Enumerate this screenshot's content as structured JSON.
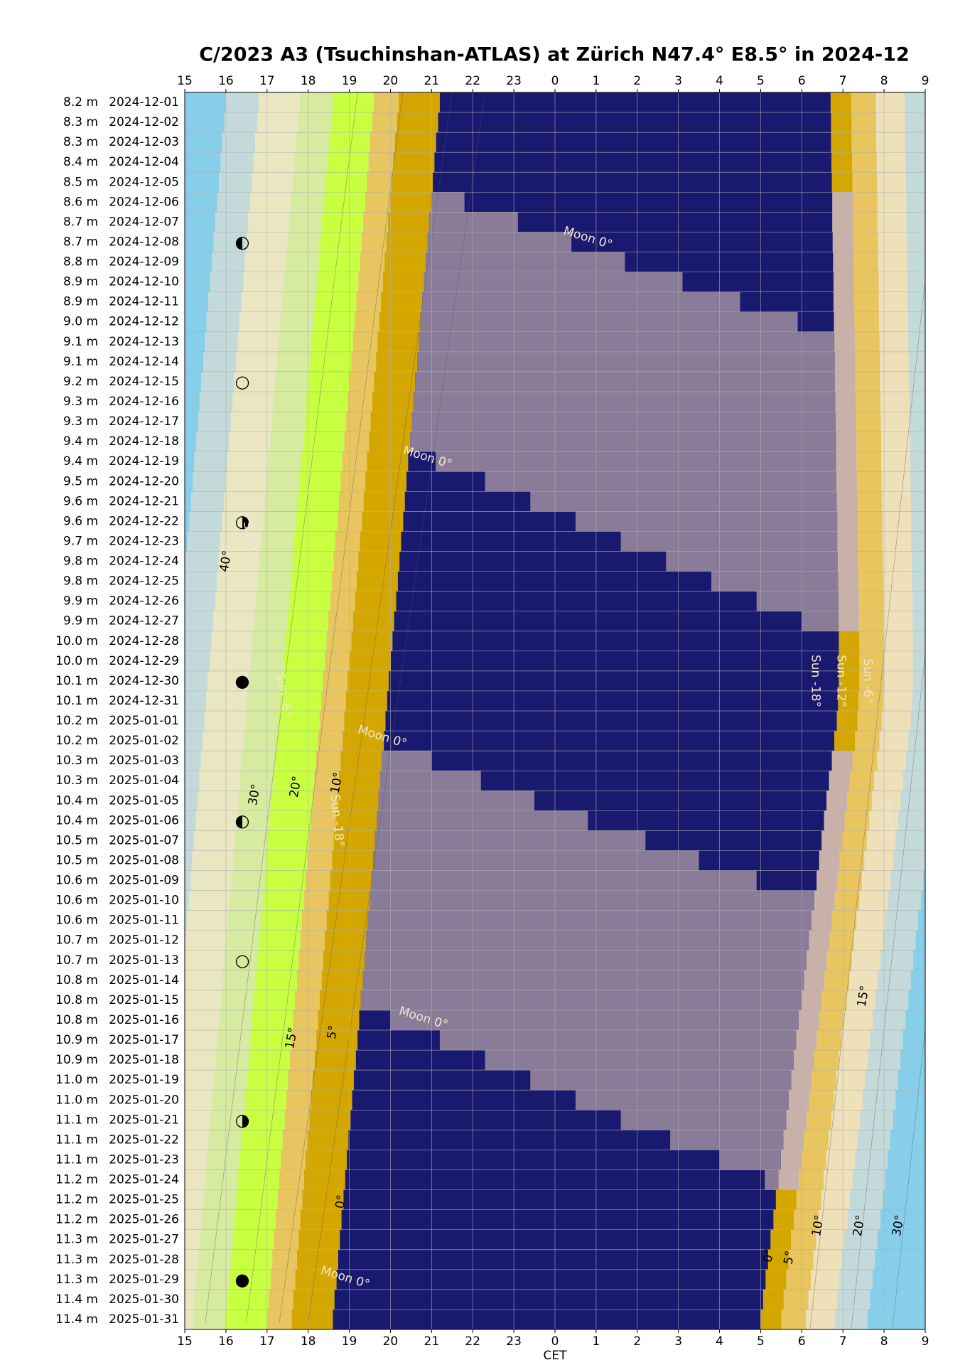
{
  "chart_data": {
    "type": "night-plan",
    "title": "C/2023 A3 (Tsuchinshan-ATLAS) at Zürich N47.4° E8.5° in 2024-12",
    "x_label": "CET",
    "xlim": [
      15,
      33
    ],
    "xticks": [
      15,
      16,
      17,
      18,
      19,
      20,
      21,
      22,
      23,
      {
        "value": 24,
        "label": "0"
      },
      {
        "value": 25,
        "label": "1"
      },
      {
        "value": 26,
        "label": "2"
      },
      {
        "value": 27,
        "label": "3"
      },
      {
        "value": 28,
        "label": "4"
      },
      {
        "value": 29,
        "label": "5"
      },
      {
        "value": 30,
        "label": "6"
      },
      {
        "value": 31,
        "label": "7"
      },
      {
        "value": 32,
        "label": "8"
      },
      {
        "value": 33,
        "label": "9"
      }
    ],
    "grid": true,
    "colors": {
      "dark": "#191970",
      "moon": "#8a7b98"
    },
    "annotations": [
      "Moon 0°",
      "Sun -18°",
      "Sun -12°",
      "Sun -6°",
      "Sun 0°",
      "40°",
      "30°",
      "20°",
      "10°",
      "15°",
      "5°",
      "0°"
    ],
    "rows": [
      {
        "mag": "8.2 m",
        "date": "2024-12-01",
        "dark": [
          21.2,
          30.7
        ],
        "moon": null
      },
      {
        "mag": "8.3 m",
        "date": "2024-12-02",
        "dark": [
          21.16,
          30.71
        ],
        "moon": null
      },
      {
        "mag": "8.3 m",
        "date": "2024-12-03",
        "dark": [
          21.11,
          30.71
        ],
        "moon": null
      },
      {
        "mag": "8.4 m",
        "date": "2024-12-04",
        "dark": [
          21.07,
          30.72
        ],
        "moon": null
      },
      {
        "mag": "8.5 m",
        "date": "2024-12-05",
        "dark": [
          21.03,
          30.73
        ],
        "moon": null
      },
      {
        "mag": "8.6 m",
        "date": "2024-12-06",
        "dark": [
          20.99,
          30.74
        ],
        "moon": [
          20.99,
          21.8
        ]
      },
      {
        "mag": "8.7 m",
        "date": "2024-12-07",
        "dark": [
          20.94,
          30.74
        ],
        "moon": [
          20.94,
          23.1
        ]
      },
      {
        "mag": "8.7 m",
        "date": "2024-12-08",
        "dark": [
          20.9,
          30.75
        ],
        "moon": [
          20.9,
          24.4
        ],
        "phase": "◐"
      },
      {
        "mag": "8.8 m",
        "date": "2024-12-09",
        "dark": [
          20.86,
          30.76
        ],
        "moon": [
          20.86,
          25.7
        ]
      },
      {
        "mag": "8.9 m",
        "date": "2024-12-10",
        "dark": [
          20.82,
          30.77
        ],
        "moon": [
          20.82,
          27.1
        ]
      },
      {
        "mag": "8.9 m",
        "date": "2024-12-11",
        "dark": [
          20.77,
          30.77
        ],
        "moon": [
          20.77,
          28.5
        ]
      },
      {
        "mag": "9.0 m",
        "date": "2024-12-12",
        "dark": [
          20.73,
          30.78
        ],
        "moon": [
          20.73,
          29.9
        ]
      },
      {
        "mag": "9.1 m",
        "date": "2024-12-13",
        "dark": [
          20.69,
          30.79
        ],
        "moon": [
          20.69,
          30.79
        ]
      },
      {
        "mag": "9.1 m",
        "date": "2024-12-14",
        "dark": [
          20.65,
          30.8
        ],
        "moon": [
          20.65,
          30.8
        ]
      },
      {
        "mag": "9.2 m",
        "date": "2024-12-15",
        "dark": [
          20.6,
          30.8
        ],
        "moon": [
          20.6,
          30.8
        ],
        "phase": "○"
      },
      {
        "mag": "9.3 m",
        "date": "2024-12-16",
        "dark": [
          20.56,
          30.81
        ],
        "moon": [
          20.56,
          30.81
        ]
      },
      {
        "mag": "9.3 m",
        "date": "2024-12-17",
        "dark": [
          20.52,
          30.82
        ],
        "moon": [
          20.52,
          30.82
        ]
      },
      {
        "mag": "9.4 m",
        "date": "2024-12-18",
        "dark": [
          20.48,
          30.83
        ],
        "moon": [
          20.48,
          30.83
        ]
      },
      {
        "mag": "9.4 m",
        "date": "2024-12-19",
        "dark": [
          20.43,
          30.83
        ],
        "moon": [
          21.1,
          30.83
        ]
      },
      {
        "mag": "9.5 m",
        "date": "2024-12-20",
        "dark": [
          20.39,
          30.84
        ],
        "moon": [
          22.3,
          30.84
        ]
      },
      {
        "mag": "9.6 m",
        "date": "2024-12-21",
        "dark": [
          20.35,
          30.85
        ],
        "moon": [
          23.4,
          30.85
        ]
      },
      {
        "mag": "9.6 m",
        "date": "2024-12-22",
        "dark": [
          20.31,
          30.86
        ],
        "moon": [
          24.5,
          30.86
        ],
        "phase": "◑"
      },
      {
        "mag": "9.7 m",
        "date": "2024-12-23",
        "dark": [
          20.26,
          30.86
        ],
        "moon": [
          25.6,
          30.86
        ]
      },
      {
        "mag": "9.8 m",
        "date": "2024-12-24",
        "dark": [
          20.22,
          30.87
        ],
        "moon": [
          26.7,
          30.87
        ]
      },
      {
        "mag": "9.8 m",
        "date": "2024-12-25",
        "dark": [
          20.18,
          30.88
        ],
        "moon": [
          27.8,
          30.88
        ]
      },
      {
        "mag": "9.9 m",
        "date": "2024-12-26",
        "dark": [
          20.14,
          30.89
        ],
        "moon": [
          28.9,
          30.89
        ]
      },
      {
        "mag": "9.9 m",
        "date": "2024-12-27",
        "dark": [
          20.09,
          30.89
        ],
        "moon": [
          30.0,
          30.89
        ]
      },
      {
        "mag": "10.0 m",
        "date": "2024-12-28",
        "dark": [
          20.05,
          30.9
        ],
        "moon": null
      },
      {
        "mag": "10.0 m",
        "date": "2024-12-29",
        "dark": [
          20.01,
          30.9
        ],
        "moon": null
      },
      {
        "mag": "10.1 m",
        "date": "2024-12-30",
        "dark": [
          19.96,
          30.9
        ],
        "moon": null,
        "phase": "●"
      },
      {
        "mag": "10.1 m",
        "date": "2024-12-31",
        "dark": [
          19.92,
          30.88
        ],
        "moon": null
      },
      {
        "mag": "10.2 m",
        "date": "2025-01-01",
        "dark": [
          19.88,
          30.85
        ],
        "moon": null
      },
      {
        "mag": "10.2 m",
        "date": "2025-01-02",
        "dark": [
          19.84,
          30.79
        ],
        "moon": null
      },
      {
        "mag": "10.3 m",
        "date": "2025-01-03",
        "dark": [
          19.79,
          30.73
        ],
        "moon": [
          19.79,
          21.0
        ]
      },
      {
        "mag": "10.3 m",
        "date": "2025-01-04",
        "dark": [
          19.75,
          30.66
        ],
        "moon": [
          19.75,
          22.2
        ]
      },
      {
        "mag": "10.4 m",
        "date": "2025-01-05",
        "dark": [
          19.71,
          30.6
        ],
        "moon": [
          19.71,
          23.5
        ]
      },
      {
        "mag": "10.4 m",
        "date": "2025-01-06",
        "dark": [
          19.67,
          30.54
        ],
        "moon": [
          19.67,
          24.8
        ],
        "phase": "◐"
      },
      {
        "mag": "10.5 m",
        "date": "2025-01-07",
        "dark": [
          19.62,
          30.48
        ],
        "moon": [
          19.62,
          26.2
        ]
      },
      {
        "mag": "10.5 m",
        "date": "2025-01-08",
        "dark": [
          19.58,
          30.42
        ],
        "moon": [
          19.58,
          27.5
        ]
      },
      {
        "mag": "10.6 m",
        "date": "2025-01-09",
        "dark": [
          19.54,
          30.36
        ],
        "moon": [
          19.54,
          28.9
        ]
      },
      {
        "mag": "10.6 m",
        "date": "2025-01-10",
        "dark": [
          19.5,
          30.3
        ],
        "moon": [
          19.5,
          30.3
        ]
      },
      {
        "mag": "10.6 m",
        "date": "2025-01-11",
        "dark": [
          19.45,
          30.23
        ],
        "moon": [
          19.45,
          30.23
        ]
      },
      {
        "mag": "10.7 m",
        "date": "2025-01-12",
        "dark": [
          19.41,
          30.17
        ],
        "moon": [
          19.41,
          30.17
        ]
      },
      {
        "mag": "10.7 m",
        "date": "2025-01-13",
        "dark": [
          19.37,
          30.11
        ],
        "moon": [
          19.37,
          30.11
        ],
        "phase": "○"
      },
      {
        "mag": "10.8 m",
        "date": "2025-01-14",
        "dark": [
          19.33,
          30.05
        ],
        "moon": [
          19.33,
          30.05
        ]
      },
      {
        "mag": "10.8 m",
        "date": "2025-01-15",
        "dark": [
          19.28,
          29.99
        ],
        "moon": [
          19.28,
          29.99
        ]
      },
      {
        "mag": "10.8 m",
        "date": "2025-01-16",
        "dark": [
          19.24,
          29.92
        ],
        "moon": [
          20.0,
          29.92
        ]
      },
      {
        "mag": "10.9 m",
        "date": "2025-01-17",
        "dark": [
          19.2,
          29.86
        ],
        "moon": [
          21.2,
          29.86
        ]
      },
      {
        "mag": "10.9 m",
        "date": "2025-01-18",
        "dark": [
          19.16,
          29.8
        ],
        "moon": [
          22.3,
          29.8
        ]
      },
      {
        "mag": "11.0 m",
        "date": "2025-01-19",
        "dark": [
          19.11,
          29.74
        ],
        "moon": [
          23.4,
          29.74
        ]
      },
      {
        "mag": "11.0 m",
        "date": "2025-01-20",
        "dark": [
          19.07,
          29.68
        ],
        "moon": [
          24.5,
          29.68
        ]
      },
      {
        "mag": "11.1 m",
        "date": "2025-01-21",
        "dark": [
          19.03,
          29.62
        ],
        "moon": [
          25.6,
          29.62
        ],
        "phase": "◑"
      },
      {
        "mag": "11.1 m",
        "date": "2025-01-22",
        "dark": [
          18.98,
          29.55
        ],
        "moon": [
          26.8,
          29.55
        ]
      },
      {
        "mag": "11.1 m",
        "date": "2025-01-23",
        "dark": [
          18.94,
          29.49
        ],
        "moon": [
          28.0,
          29.49
        ]
      },
      {
        "mag": "11.2 m",
        "date": "2025-01-24",
        "dark": [
          18.9,
          29.43
        ],
        "moon": [
          29.1,
          29.43
        ]
      },
      {
        "mag": "11.2 m",
        "date": "2025-01-25",
        "dark": [
          18.86,
          29.37
        ],
        "moon": null
      },
      {
        "mag": "11.2 m",
        "date": "2025-01-26",
        "dark": [
          18.81,
          29.31
        ],
        "moon": null
      },
      {
        "mag": "11.3 m",
        "date": "2025-01-27",
        "dark": [
          18.77,
          29.24
        ],
        "moon": null
      },
      {
        "mag": "11.3 m",
        "date": "2025-01-28",
        "dark": [
          18.73,
          29.18
        ],
        "moon": null
      },
      {
        "mag": "11.3 m",
        "date": "2025-01-29",
        "dark": [
          18.69,
          29.12
        ],
        "moon": null,
        "phase": "●"
      },
      {
        "mag": "11.4 m",
        "date": "2025-01-30",
        "dark": [
          18.64,
          29.06
        ],
        "moon": null
      },
      {
        "mag": "11.4 m",
        "date": "2025-01-31",
        "dark": [
          18.6,
          29.0
        ],
        "moon": null
      }
    ]
  }
}
